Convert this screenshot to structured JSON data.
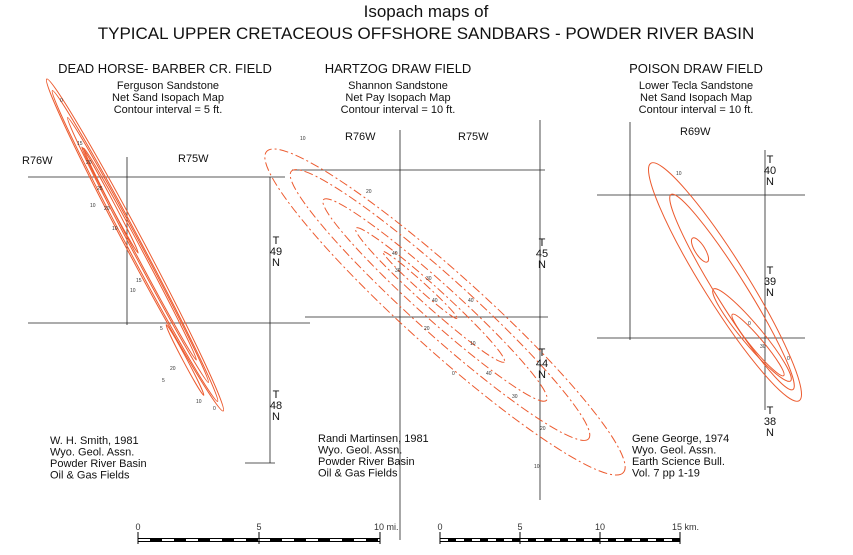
{
  "title": [
    "Isopach maps of",
    "TYPICAL UPPER CRETACEOUS OFFSHORE SANDBARS - POWDER RIVER BASIN"
  ],
  "panels": [
    {
      "field": "DEAD HORSE- BARBER CR. FIELD",
      "subtitle": [
        "Ferguson Sandstone",
        "Net Sand Isopach Map",
        "Contour interval = 5 ft."
      ],
      "ranges": [
        "R76W",
        "R75W"
      ],
      "townships": [
        [
          "T",
          "49",
          "N"
        ],
        [
          "T",
          "48",
          "N"
        ]
      ],
      "citation": [
        "W. H. Smith, 1981",
        "Wyo. Geol. Assn.",
        "Powder River Basin",
        "Oil & Gas Fields"
      ],
      "contour_labels": [
        "0",
        "15",
        "20",
        "25",
        "10",
        "20",
        "10",
        "15",
        "5",
        "10",
        "20",
        "5",
        "10",
        "0"
      ]
    },
    {
      "field": "HARTZOG DRAW FIELD",
      "subtitle": [
        "Shannon Sandstone",
        "Net Pay  Isopach Map",
        "Contour interval = 10 ft."
      ],
      "ranges": [
        "R76W",
        "R75W"
      ],
      "townships": [
        [
          "T",
          "45",
          "N"
        ],
        [
          "T",
          "44",
          "N"
        ]
      ],
      "citation": [
        "Randi Martinsen, 1981",
        "Wyo. Geol. Assn.",
        "Powder River Basin",
        "Oil & Gas Fields"
      ],
      "contour_labels": [
        "10",
        "20",
        "40",
        "30",
        "30",
        "40",
        "40",
        "20",
        "10",
        "40",
        "0",
        "30",
        "20",
        "10"
      ]
    },
    {
      "field": "POISON DRAW FIELD",
      "subtitle": [
        "Lower Tecla Sandstone",
        "Net Sand  Isopach Map",
        "Contour interval = 10 ft."
      ],
      "ranges": [
        "R69W"
      ],
      "townships": [
        [
          "T",
          "40",
          "N"
        ],
        [
          "T",
          "39",
          "N"
        ],
        [
          "T",
          "38",
          "N"
        ]
      ],
      "citation": [
        "Gene George, 1974",
        "Wyo. Geol. Assn.",
        "Earth Science Bull.",
        "Vol. 7  pp 1-19"
      ],
      "contour_labels": [
        "10",
        "0",
        "30",
        "0"
      ]
    }
  ],
  "scale_miles": [
    "0",
    "5",
    "10 mi."
  ],
  "scale_km": [
    "0",
    "5",
    "10",
    "15 km."
  ]
}
